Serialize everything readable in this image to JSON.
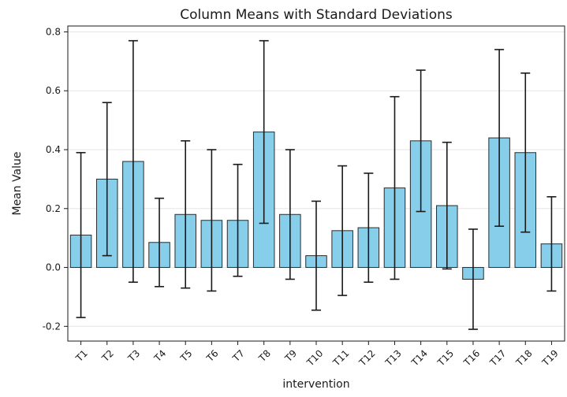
{
  "chart_data": {
    "type": "bar",
    "title": "Column Means with Standard Deviations",
    "xlabel": "intervention",
    "ylabel": "Mean Value",
    "categories": [
      "T1",
      "T2",
      "T3",
      "T4",
      "T5",
      "T6",
      "T7",
      "T8",
      "T9",
      "T10",
      "T11",
      "T12",
      "T13",
      "T14",
      "T15",
      "T16",
      "T17",
      "T18",
      "T19"
    ],
    "values": [
      0.11,
      0.3,
      0.36,
      0.085,
      0.18,
      0.16,
      0.16,
      0.46,
      0.18,
      0.04,
      0.125,
      0.135,
      0.27,
      0.43,
      0.21,
      -0.04,
      0.44,
      0.39,
      0.08
    ],
    "errors": [
      0.28,
      0.26,
      0.41,
      0.15,
      0.25,
      0.24,
      0.19,
      0.31,
      0.22,
      0.185,
      0.22,
      0.185,
      0.31,
      0.24,
      0.215,
      0.17,
      0.3,
      0.27,
      0.16
    ],
    "ylim": [
      -0.25,
      0.82
    ],
    "yticks": [
      -0.2,
      0.0,
      0.2,
      0.4,
      0.6,
      0.8
    ],
    "ytick_labels": [
      "-0.2",
      "0.0",
      "0.2",
      "0.4",
      "0.6",
      "0.8"
    ],
    "grid": "horizontal",
    "bar_color": "#87CEEB",
    "bar_edge_color": "#2b2b2b",
    "error_color": "#1a1a1a",
    "grid_color": "#e6e6e6"
  }
}
